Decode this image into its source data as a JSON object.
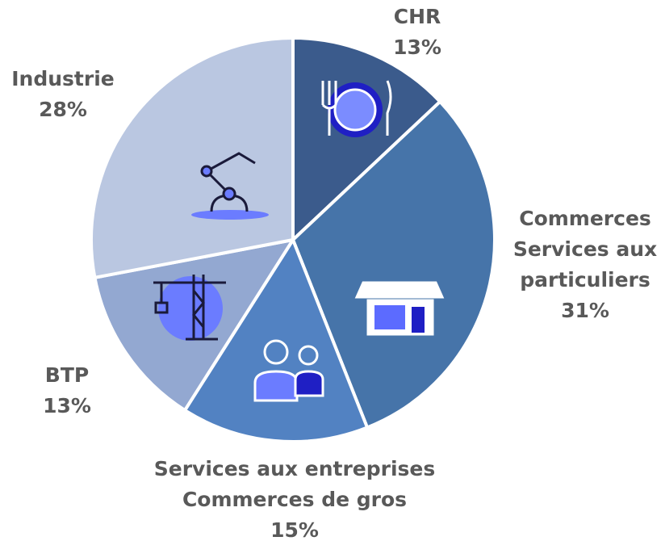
{
  "chart_data": {
    "type": "pie",
    "categories": [
      "CHR",
      "Commerces\nServices aux\nparticuliers",
      "Services aux entreprises\nCommerces de gros",
      "BTP",
      "Industrie"
    ],
    "values": [
      13,
      31,
      15,
      13,
      28
    ],
    "value_labels": [
      "13%",
      "31%",
      "15%",
      "13%",
      "28%"
    ],
    "colors": [
      "#3b5b8c",
      "#4674a9",
      "#5282c2",
      "#93a8d1",
      "#bac7e1"
    ]
  }
}
